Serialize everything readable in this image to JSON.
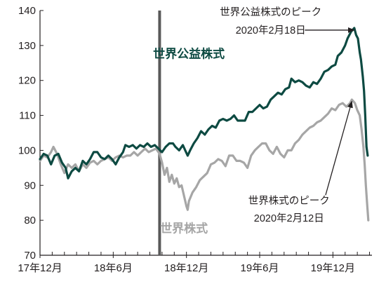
{
  "chart_data": {
    "type": "line",
    "title": "",
    "xlabel": "",
    "ylabel": "",
    "ylim": [
      70,
      140
    ],
    "yticks": [
      "70",
      "80",
      "90",
      "100",
      "110",
      "120",
      "130",
      "140"
    ],
    "xticks": [
      {
        "label": "17年12月",
        "t": 0
      },
      {
        "label": "18年6月",
        "t": 6
      },
      {
        "label": "18年12月",
        "t": 12
      },
      {
        "label": "19年6月",
        "t": 18
      },
      {
        "label": "19年12月",
        "t": 24
      }
    ],
    "x_range_months": [
      0,
      27.2
    ],
    "vertical_line_month": 9.8,
    "grid": false,
    "colors": {
      "reit": "#0d4a42",
      "equity": "#a6a6a6",
      "axis": "#231f20",
      "divider": "#595959"
    },
    "series": [
      {
        "name": "世界公益株式",
        "key": "reit",
        "label_pos": {
          "t": 12.2,
          "v": 126.5
        },
        "points": [
          [
            0.0,
            97.5
          ],
          [
            0.3,
            99
          ],
          [
            0.6,
            98.5
          ],
          [
            0.9,
            96
          ],
          [
            1.2,
            98.5
          ],
          [
            1.5,
            99
          ],
          [
            1.8,
            96.5
          ],
          [
            2.1,
            95
          ],
          [
            2.3,
            92
          ],
          [
            2.6,
            94
          ],
          [
            2.9,
            95
          ],
          [
            3.2,
            94
          ],
          [
            3.5,
            97
          ],
          [
            3.8,
            96
          ],
          [
            4.1,
            97.5
          ],
          [
            4.4,
            99.5
          ],
          [
            4.7,
            99.5
          ],
          [
            5.0,
            98
          ],
          [
            5.3,
            97.5
          ],
          [
            5.6,
            98.5
          ],
          [
            5.9,
            97.5
          ],
          [
            6.2,
            96
          ],
          [
            6.5,
            98
          ],
          [
            6.8,
            99.5
          ],
          [
            7.0,
            101.5
          ],
          [
            7.3,
            101
          ],
          [
            7.6,
            101.5
          ],
          [
            7.9,
            100.5
          ],
          [
            8.2,
            101.5
          ],
          [
            8.5,
            101
          ],
          [
            8.8,
            102
          ],
          [
            9.1,
            101
          ],
          [
            9.4,
            101.5
          ],
          [
            9.7,
            100.5
          ],
          [
            10.0,
            99.5
          ],
          [
            10.3,
            101
          ],
          [
            10.6,
            102
          ],
          [
            10.9,
            102
          ],
          [
            11.1,
            101
          ],
          [
            11.4,
            100
          ],
          [
            11.7,
            101.5
          ],
          [
            11.9,
            100
          ],
          [
            12.1,
            98.5
          ],
          [
            12.3,
            100
          ],
          [
            12.6,
            102
          ],
          [
            12.9,
            103.5
          ],
          [
            13.2,
            105.5
          ],
          [
            13.5,
            104.5
          ],
          [
            13.8,
            106
          ],
          [
            14.1,
            107
          ],
          [
            14.4,
            106.5
          ],
          [
            14.7,
            108.5
          ],
          [
            15.0,
            109
          ],
          [
            15.3,
            108.5
          ],
          [
            15.6,
            109
          ],
          [
            15.9,
            110
          ],
          [
            16.2,
            108.5
          ],
          [
            16.5,
            108.5
          ],
          [
            16.8,
            108.5
          ],
          [
            17.1,
            111
          ],
          [
            17.4,
            111
          ],
          [
            17.7,
            112
          ],
          [
            18.0,
            113
          ],
          [
            18.3,
            112
          ],
          [
            18.6,
            112.5
          ],
          [
            18.9,
            114.5
          ],
          [
            19.2,
            115.5
          ],
          [
            19.5,
            116.5
          ],
          [
            19.8,
            116
          ],
          [
            20.1,
            117.5
          ],
          [
            20.4,
            118
          ],
          [
            20.6,
            120.5
          ],
          [
            20.9,
            119.5
          ],
          [
            21.2,
            120
          ],
          [
            21.5,
            119.5
          ],
          [
            21.8,
            118.5
          ],
          [
            22.1,
            118
          ],
          [
            22.4,
            119.5
          ],
          [
            22.7,
            119
          ],
          [
            23.0,
            120.5
          ],
          [
            23.3,
            122.5
          ],
          [
            23.6,
            123
          ],
          [
            23.9,
            124
          ],
          [
            24.2,
            124.5
          ],
          [
            24.4,
            127
          ],
          [
            24.7,
            128
          ],
          [
            25.0,
            130
          ],
          [
            25.2,
            132
          ],
          [
            25.5,
            134
          ],
          [
            25.75,
            135
          ],
          [
            25.9,
            133
          ],
          [
            26.05,
            132
          ],
          [
            26.2,
            128
          ],
          [
            26.3,
            126
          ],
          [
            26.45,
            121
          ],
          [
            26.55,
            117
          ],
          [
            26.65,
            110
          ],
          [
            26.75,
            101
          ],
          [
            26.85,
            98.5
          ]
        ]
      },
      {
        "name": "世界株式",
        "key": "equity",
        "label_pos": {
          "t": 11.8,
          "v": 76.5
        },
        "points": [
          [
            0.0,
            97
          ],
          [
            0.3,
            98.5
          ],
          [
            0.6,
            98
          ],
          [
            0.9,
            99.5
          ],
          [
            1.1,
            101
          ],
          [
            1.4,
            99
          ],
          [
            1.7,
            96
          ],
          [
            2.0,
            93.5
          ],
          [
            2.3,
            96
          ],
          [
            2.6,
            95
          ],
          [
            2.9,
            96
          ],
          [
            3.2,
            94
          ],
          [
            3.5,
            96
          ],
          [
            3.8,
            95
          ],
          [
            4.1,
            96.5
          ],
          [
            4.4,
            97
          ],
          [
            4.7,
            96
          ],
          [
            5.0,
            97
          ],
          [
            5.3,
            97.5
          ],
          [
            5.6,
            98
          ],
          [
            5.9,
            97
          ],
          [
            6.2,
            98
          ],
          [
            6.5,
            98.5
          ],
          [
            6.8,
            98
          ],
          [
            7.1,
            98.5
          ],
          [
            7.4,
            98.5
          ],
          [
            7.7,
            99.5
          ],
          [
            8.0,
            98.5
          ],
          [
            8.3,
            99.5
          ],
          [
            8.6,
            100.5
          ],
          [
            8.9,
            99.5
          ],
          [
            9.2,
            100
          ],
          [
            9.5,
            100.5
          ],
          [
            9.8,
            99
          ],
          [
            10.0,
            96.5
          ],
          [
            10.2,
            93
          ],
          [
            10.4,
            95
          ],
          [
            10.6,
            91
          ],
          [
            10.8,
            93
          ],
          [
            11.0,
            90.5
          ],
          [
            11.2,
            92
          ],
          [
            11.4,
            89.5
          ],
          [
            11.6,
            90
          ],
          [
            11.8,
            87
          ],
          [
            12.0,
            84
          ],
          [
            12.1,
            83
          ],
          [
            12.2,
            85.5
          ],
          [
            12.5,
            88
          ],
          [
            12.8,
            89.5
          ],
          [
            13.1,
            91.5
          ],
          [
            13.4,
            92.5
          ],
          [
            13.7,
            93.5
          ],
          [
            14.0,
            96
          ],
          [
            14.3,
            96.5
          ],
          [
            14.6,
            97.5
          ],
          [
            14.9,
            97
          ],
          [
            15.2,
            95.5
          ],
          [
            15.5,
            98.5
          ],
          [
            15.8,
            98.5
          ],
          [
            16.1,
            97
          ],
          [
            16.4,
            97
          ],
          [
            16.7,
            96.5
          ],
          [
            17.0,
            95
          ],
          [
            17.3,
            98.5
          ],
          [
            17.6,
            100
          ],
          [
            17.9,
            101
          ],
          [
            18.2,
            102
          ],
          [
            18.5,
            102
          ],
          [
            18.8,
            100
          ],
          [
            19.1,
            99
          ],
          [
            19.4,
            101
          ],
          [
            19.7,
            99
          ],
          [
            20.0,
            98
          ],
          [
            20.3,
            100
          ],
          [
            20.6,
            100
          ],
          [
            20.9,
            102
          ],
          [
            21.2,
            103
          ],
          [
            21.5,
            104.5
          ],
          [
            21.8,
            105.5
          ],
          [
            22.1,
            106.5
          ],
          [
            22.4,
            107
          ],
          [
            22.7,
            108
          ],
          [
            23.0,
            108.5
          ],
          [
            23.3,
            109.5
          ],
          [
            23.6,
            110.5
          ],
          [
            23.9,
            112
          ],
          [
            24.2,
            111.5
          ],
          [
            24.5,
            113
          ],
          [
            24.8,
            113.5
          ],
          [
            25.1,
            112.5
          ],
          [
            25.4,
            113.5
          ],
          [
            25.55,
            114.5
          ],
          [
            25.8,
            113.5
          ],
          [
            26.0,
            111.5
          ],
          [
            26.2,
            110
          ],
          [
            26.35,
            106
          ],
          [
            26.5,
            101
          ],
          [
            26.6,
            96
          ],
          [
            26.7,
            90
          ],
          [
            26.8,
            85
          ],
          [
            26.9,
            80
          ]
        ]
      }
    ],
    "annotations": [
      {
        "key": "reit_peak",
        "lines": [
          "世界公益株式のピーク",
          "2020年2月18日"
        ],
        "anchor": "middle",
        "text_t": 18.9,
        "text_v": 138.6,
        "line_gap_v": 5.2,
        "arrow_from": [
          21.7,
          134.4
        ],
        "arrow_to": [
          25.75,
          134.4
        ]
      },
      {
        "key": "equity_peak",
        "lines": [
          "世界株式のピーク",
          "2020年2月12日"
        ],
        "anchor": "middle",
        "text_t": 20.4,
        "text_v": 84.6,
        "line_gap_v": 5.0,
        "arrow_from": [
          23.4,
          87.2
        ],
        "arrow_to": [
          25.55,
          114
        ]
      }
    ]
  }
}
